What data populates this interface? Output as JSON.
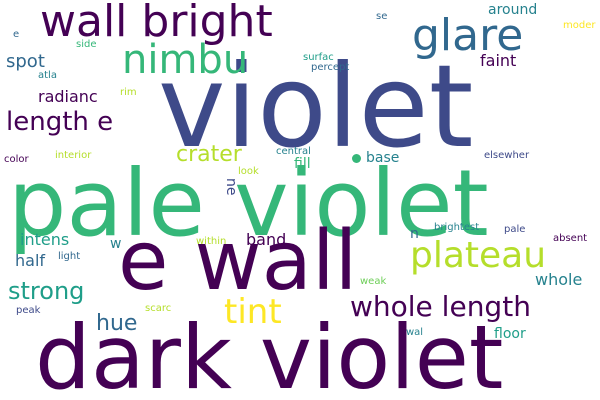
{
  "colors": {
    "background": "#ffffff",
    "dark_purple": "#440154",
    "indigo": "#3e4a89",
    "blue": "#31688e",
    "teal": "#26828e",
    "green_teal": "#1f9e89",
    "green": "#35b779",
    "light_green": "#6ece58",
    "lime": "#b5de2b",
    "yellow": "#fde725"
  },
  "words": {
    "violet": "violet",
    "pale_violet": "pale violet",
    "dark_violet": "dark violet",
    "e_wall": "e wall",
    "wall_bright": "wall bright",
    "glare": "glare",
    "nimbu": "nimbu",
    "plateau": "plateau",
    "whole_length": "whole length",
    "tint": "tint",
    "length_e": "length e",
    "crater": "crater",
    "strong": "strong",
    "hue": "hue",
    "spot": "spot",
    "radianc": "radianc",
    "intens": "intens",
    "half": "half",
    "band": "band",
    "whole": "whole",
    "base": "base",
    "faint": "faint",
    "around": "around",
    "fill": "fill",
    "floor": "floor",
    "ne": "ne",
    "w": "w",
    "n": "n",
    "se": "se",
    "e": "e",
    "side": "side",
    "atla": "atla",
    "rim": "rim",
    "color": "color",
    "interior": "interior",
    "look": "look",
    "central": "central",
    "elsewher": "elsewher",
    "surfac": "surfac",
    "percept": "percept",
    "moder": "moder",
    "within": "within",
    "light": "light",
    "brightest": "brightest",
    "pale": "pale",
    "absent": "absent",
    "weak": "weak",
    "peak": "peak",
    "scarc": "scarc",
    "wal": "wal"
  }
}
